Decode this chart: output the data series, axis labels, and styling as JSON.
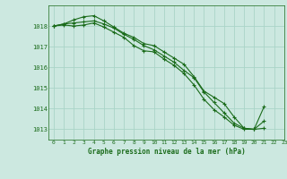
{
  "title": "Graphe pression niveau de la mer (hPa)",
  "bg_color": "#cce8e0",
  "line_color": "#1a6b1a",
  "grid_color": "#aad4c8",
  "xlim": [
    -0.5,
    23
  ],
  "ylim": [
    1012.5,
    1019.0
  ],
  "yticks": [
    1013,
    1014,
    1015,
    1016,
    1017,
    1018
  ],
  "xticks": [
    0,
    1,
    2,
    3,
    4,
    5,
    6,
    7,
    8,
    9,
    10,
    11,
    12,
    13,
    14,
    15,
    16,
    17,
    18,
    19,
    20,
    21,
    22,
    23
  ],
  "series": [
    [
      1018.0,
      1018.1,
      1018.15,
      1018.2,
      1018.25,
      1018.1,
      1017.9,
      1017.6,
      1017.35,
      1017.05,
      1016.85,
      1016.55,
      1016.25,
      1015.85,
      1015.5,
      1014.8,
      1014.3,
      1013.8,
      1013.3,
      1013.05,
      1013.0,
      1013.4,
      null,
      null
    ],
    [
      1018.0,
      1018.1,
      1018.3,
      1018.45,
      1018.5,
      1018.25,
      1017.95,
      1017.65,
      1017.45,
      1017.15,
      1017.05,
      1016.75,
      1016.45,
      1016.15,
      1015.55,
      1014.85,
      1014.55,
      1014.25,
      1013.6,
      1013.05,
      1013.0,
      1013.05,
      null,
      null
    ],
    [
      1018.0,
      1018.05,
      1018.0,
      1018.05,
      1018.15,
      1017.95,
      1017.7,
      1017.45,
      1017.05,
      1016.8,
      1016.75,
      1016.4,
      1016.1,
      1015.7,
      1015.15,
      1014.45,
      1013.95,
      1013.6,
      1013.2,
      1013.0,
      1013.0,
      1014.1,
      null,
      null
    ]
  ]
}
